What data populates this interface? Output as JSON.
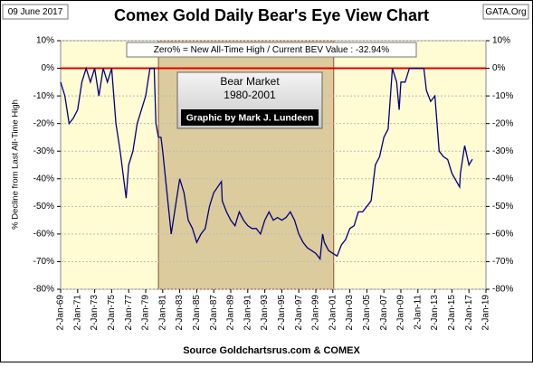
{
  "chart_data": {
    "type": "line",
    "title": "Comex Gold Daily Bear's Eye View Chart",
    "date_label": "09 June 2017",
    "site_label": "GATA.Org",
    "info_box": "Zero% = New All-Time High  / Current  BEV Value :  -32.94%",
    "bear_market_title": "Bear Market",
    "bear_market_years": "1980-2001",
    "credit": "Graphic by Mark J. Lundeen",
    "bear_market_span": [
      1980.5,
      2001.1
    ],
    "y_label": "% Decline from Last All-Time High",
    "source": "Source Goldchartsrus.com & COMEX",
    "reference_line": 0,
    "reference_color": "#e00000",
    "color": "#000080",
    "x": [
      1969,
      1969.5,
      1970,
      1970.5,
      1971,
      1971.5,
      1972,
      1972.5,
      1973,
      1973.5,
      1974,
      1974.5,
      1975,
      1975.5,
      1976,
      1976.7,
      1977,
      1977.5,
      1978,
      1978.5,
      1979,
      1979.5,
      1980,
      1980.2,
      1980.5,
      1980.8,
      1981,
      1981.5,
      1982,
      1982.5,
      1983,
      1983.5,
      1984,
      1984.5,
      1985,
      1985.5,
      1986,
      1986.5,
      1987,
      1987.9,
      1988,
      1988.5,
      1989,
      1989.5,
      1990,
      1990.5,
      1991,
      1991.5,
      1992,
      1992.5,
      1993,
      1993.5,
      1994,
      1994.5,
      1995,
      1995.5,
      1996,
      1996.5,
      1997,
      1997.5,
      1998,
      1998.5,
      1999,
      1999.5,
      1999.8,
      2000,
      2000.5,
      2001,
      2001.5,
      2002,
      2002.5,
      2003,
      2003.5,
      2004,
      2004.5,
      2005,
      2005.5,
      2006,
      2006.5,
      2007,
      2007.5,
      2008,
      2008.5,
      2008.8,
      2009,
      2009.5,
      2010,
      2010.5,
      2011,
      2011.7,
      2012,
      2012.5,
      2013,
      2013.5,
      2014,
      2014.5,
      2015,
      2015.9,
      2016,
      2016.5,
      2017,
      2017.4
    ],
    "values": [
      -5,
      -10,
      -20,
      -18,
      -15,
      -5,
      0,
      -5,
      0,
      -10,
      0,
      -5,
      0,
      -20,
      -30,
      -47,
      -35,
      -30,
      -20,
      -15,
      -10,
      0,
      0,
      -20,
      -25,
      -25,
      -30,
      -45,
      -60,
      -50,
      -40,
      -45,
      -55,
      -58,
      -63,
      -60,
      -58,
      -50,
      -45,
      -41,
      -48,
      -52,
      -55,
      -57,
      -52,
      -55,
      -57,
      -58,
      -58,
      -60,
      -55,
      -52,
      -55,
      -54,
      -55,
      -54,
      -52,
      -55,
      -60,
      -63,
      -65,
      -66,
      -67,
      -69,
      -60,
      -63,
      -66,
      -67,
      -68,
      -64,
      -62,
      -58,
      -57,
      -52,
      -52,
      -50,
      -48,
      -35,
      -32,
      -25,
      -22,
      0,
      -5,
      -15,
      -5,
      -5,
      0,
      0,
      0,
      0,
      -8,
      -12,
      -10,
      -30,
      -32,
      -33,
      -38,
      -43,
      -38,
      -28,
      -35,
      -32.94
    ],
    "xlim": [
      1969,
      2019
    ],
    "xticks": [
      {
        "value": 1969,
        "label": "2-Jan-69"
      },
      {
        "value": 1971,
        "label": "2-Jan-71"
      },
      {
        "value": 1973,
        "label": "2-Jan-73"
      },
      {
        "value": 1975,
        "label": "2-Jan-75"
      },
      {
        "value": 1977,
        "label": "2-Jan-77"
      },
      {
        "value": 1979,
        "label": "2-Jan-79"
      },
      {
        "value": 1981,
        "label": "2-Jan-81"
      },
      {
        "value": 1983,
        "label": "2-Jan-83"
      },
      {
        "value": 1985,
        "label": "2-Jan-85"
      },
      {
        "value": 1987,
        "label": "2-Jan-87"
      },
      {
        "value": 1989,
        "label": "2-Jan-89"
      },
      {
        "value": 1991,
        "label": "2-Jan-91"
      },
      {
        "value": 1993,
        "label": "2-Jan-93"
      },
      {
        "value": 1995,
        "label": "2-Jan-95"
      },
      {
        "value": 1997,
        "label": "2-Jan-97"
      },
      {
        "value": 1999,
        "label": "2-Jan-99"
      },
      {
        "value": 2001,
        "label": "2-Jan-01"
      },
      {
        "value": 2003,
        "label": "2-Jan-03"
      },
      {
        "value": 2005,
        "label": "2-Jan-05"
      },
      {
        "value": 2007,
        "label": "2-Jan-07"
      },
      {
        "value": 2009,
        "label": "2-Jan-09"
      },
      {
        "value": 2011,
        "label": "2-Jan-11"
      },
      {
        "value": 2013,
        "label": "2-Jan-13"
      },
      {
        "value": 2015,
        "label": "2-Jan-15"
      },
      {
        "value": 2017,
        "label": "2-Jan-17"
      },
      {
        "value": 2019,
        "label": "2-Jan-19"
      }
    ],
    "ylim": [
      -80,
      10
    ],
    "yticks": [
      {
        "value": 10,
        "label": "10%"
      },
      {
        "value": 0,
        "label": "0%"
      },
      {
        "value": -10,
        "label": "-10%"
      },
      {
        "value": -20,
        "label": "-20%"
      },
      {
        "value": -30,
        "label": "-30%"
      },
      {
        "value": -40,
        "label": "-40%"
      },
      {
        "value": -50,
        "label": "-50%"
      },
      {
        "value": -60,
        "label": "-60%"
      },
      {
        "value": -70,
        "label": "-70%"
      },
      {
        "value": -80,
        "label": "-80%"
      }
    ],
    "y2lim": [
      -80,
      10
    ],
    "y2ticks": [
      {
        "value": 10,
        "label": "10%"
      },
      {
        "value": 0,
        "label": "0%"
      },
      {
        "value": -10,
        "label": "-10%"
      },
      {
        "value": -20,
        "label": "-20%"
      },
      {
        "value": -30,
        "label": "-30%"
      },
      {
        "value": -40,
        "label": "-40%"
      },
      {
        "value": -50,
        "label": "-50%"
      },
      {
        "value": -60,
        "label": "-60%"
      },
      {
        "value": -70,
        "label": "-70%"
      },
      {
        "value": -80,
        "label": "-80%"
      }
    ]
  }
}
